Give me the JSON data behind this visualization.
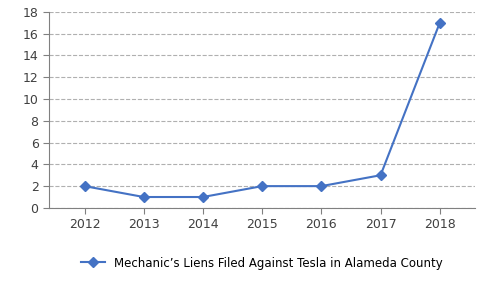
{
  "years": [
    2012,
    2013,
    2014,
    2015,
    2016,
    2017,
    2018
  ],
  "values": [
    2,
    1,
    1,
    2,
    2,
    3,
    17
  ],
  "line_color": "#4472c4",
  "marker": "D",
  "marker_size": 5,
  "legend_label": "Mechanic’s Liens Filed Against Tesla in Alameda County",
  "ylim": [
    0,
    18
  ],
  "yticks": [
    0,
    2,
    4,
    6,
    8,
    10,
    12,
    14,
    16,
    18
  ],
  "xlim": [
    2011.4,
    2018.6
  ],
  "background_color": "#ffffff",
  "grid_color": "#b0b0b0",
  "grid_style": "--",
  "spine_color": "#808080",
  "tick_color": "#404040",
  "tick_label_fontsize": 9,
  "legend_fontsize": 8.5
}
